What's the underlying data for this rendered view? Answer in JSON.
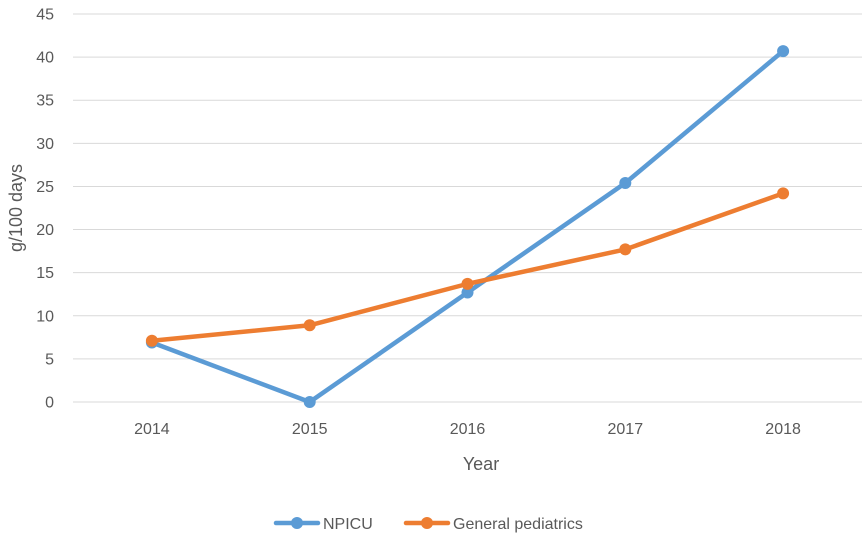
{
  "chart_data": {
    "type": "line",
    "categories": [
      "2014",
      "2015",
      "2016",
      "2017",
      "2018"
    ],
    "series": [
      {
        "name": "NPICU",
        "values": [
          6.9,
          0.0,
          12.7,
          25.4,
          40.7
        ],
        "color": "#5b9bd5"
      },
      {
        "name": "General pediatrics",
        "values": [
          7.1,
          8.9,
          13.7,
          17.7,
          24.2
        ],
        "color": "#ed7d31"
      }
    ],
    "xlabel": "Year",
    "ylabel": "g/100 days",
    "ylim": [
      0,
      45
    ],
    "yticks": [
      0,
      5,
      10,
      15,
      20,
      25,
      30,
      35,
      40,
      45
    ],
    "grid": true,
    "legend_position": "bottom"
  }
}
